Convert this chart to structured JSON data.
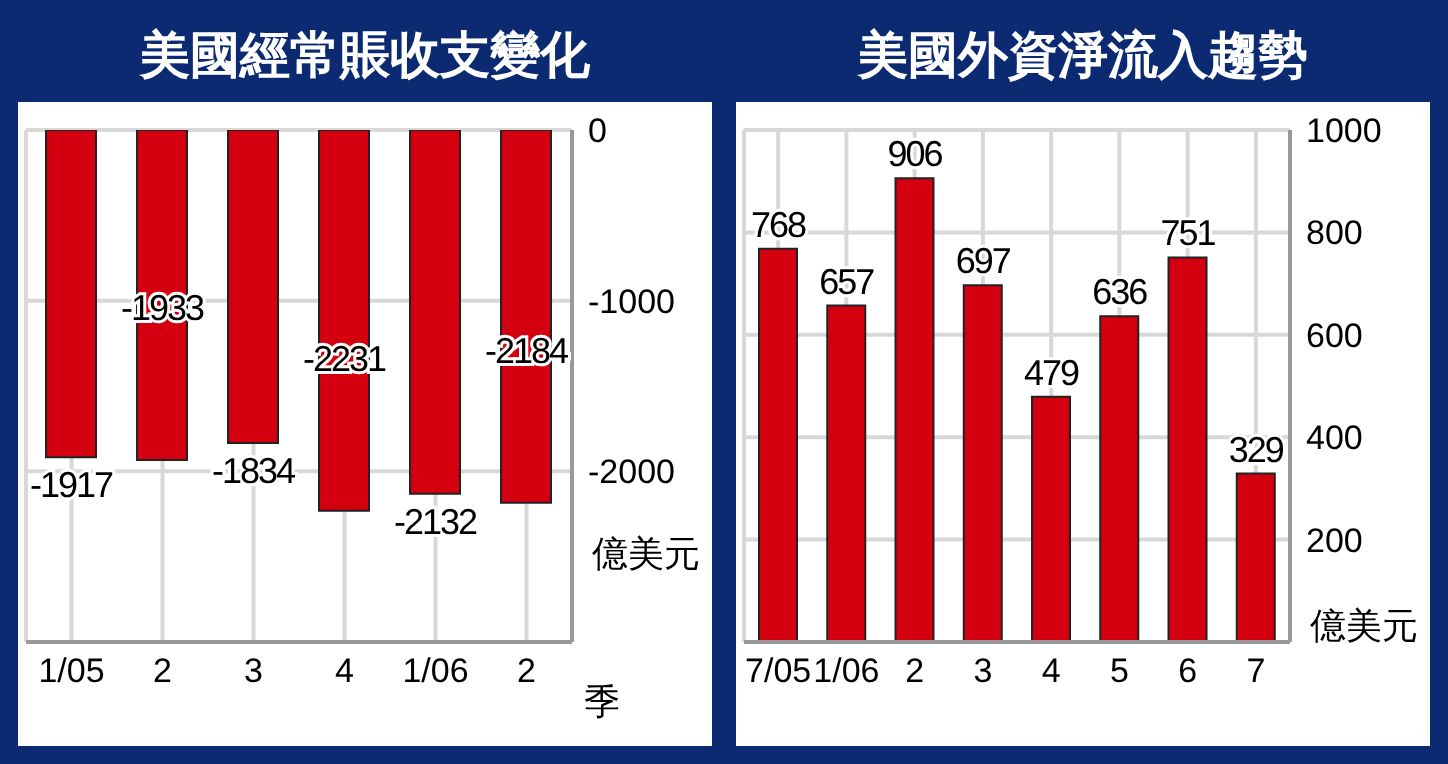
{
  "chart_data": [
    {
      "type": "bar",
      "title": "美國經常賬收支變化",
      "categories": [
        "1/05",
        "2",
        "3",
        "4",
        "1/06",
        "2"
      ],
      "xlabel": "季",
      "ylabel": "億美元",
      "values": [
        -1917,
        -1933,
        -1834,
        -2231,
        -2132,
        -2184
      ],
      "color": "#d40010",
      "ylim": [
        -3000,
        0
      ],
      "yticks": [
        0,
        -1000,
        -2000
      ],
      "grid": true,
      "data_labels": true
    },
    {
      "type": "bar",
      "title": "美國外資淨流入趨勢",
      "categories": [
        "7/05",
        "1/06",
        "2",
        "3",
        "4",
        "5",
        "6",
        "7"
      ],
      "ylabel": "億美元",
      "values": [
        768,
        657,
        906,
        697,
        479,
        636,
        751,
        329
      ],
      "color": "#d40010",
      "ylim": [
        0,
        1000
      ],
      "yticks": [
        200,
        400,
        600,
        800,
        1000
      ],
      "grid": true,
      "data_labels": true
    }
  ]
}
